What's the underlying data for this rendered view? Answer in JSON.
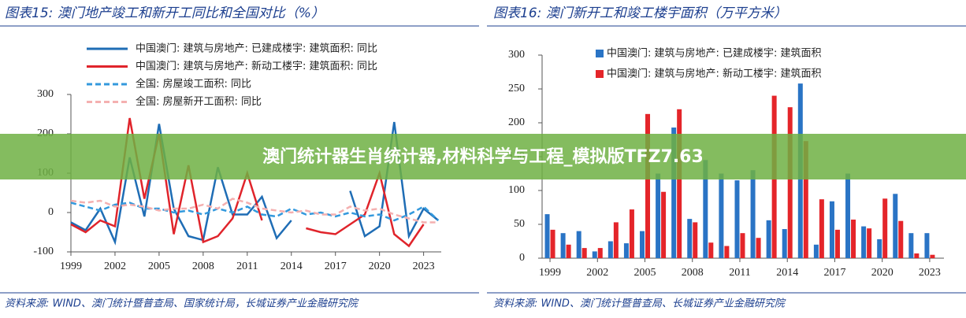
{
  "chart_data": [
    {
      "type": "line",
      "title": "图表15:  澳门地产竣工和新开工同比和全国对比（%）",
      "source": "资料来源: WIND、澳门统计暨普查局、国家统计局，长城证券产业金融研究院",
      "x": [
        1999,
        2000,
        2001,
        2002,
        2003,
        2004,
        2005,
        2006,
        2007,
        2008,
        2009,
        2010,
        2011,
        2012,
        2013,
        2014,
        2015,
        2016,
        2017,
        2018,
        2019,
        2020,
        2021,
        2022,
        2023,
        2024
      ],
      "xlim": [
        1999,
        2024.2
      ],
      "xticks": [
        1999,
        2002,
        2005,
        2008,
        2011,
        2014,
        2017,
        2020,
        2023
      ],
      "ylim": [
        -100,
        300
      ],
      "yticks": [
        -100,
        0,
        100,
        200,
        300
      ],
      "series": [
        {
          "name": "中国澳门: 建筑与房地产: 已建成楼宇: 建筑面积: 同比",
          "color": "#1f6db5",
          "style": "solid",
          "values": [
            -25,
            -45,
            10,
            -75,
            140,
            -10,
            225,
            10,
            -60,
            -70,
            115,
            -5,
            -5,
            40,
            -65,
            -20,
            null,
            null,
            null,
            55,
            -60,
            -35,
            230,
            -60,
            10,
            -20
          ]
        },
        {
          "name": "中国澳门: 建筑与房地产: 新动工楼宇: 建筑面积: 同比",
          "color": "#e0242b",
          "style": "solid",
          "values": [
            -30,
            -50,
            -20,
            -35,
            240,
            35,
            200,
            -55,
            120,
            -75,
            -60,
            -15,
            100,
            -20,
            null,
            null,
            -40,
            -50,
            -55,
            -30,
            -5,
            100,
            -55,
            -85,
            -30,
            null
          ]
        },
        {
          "name": "全国: 房屋竣工面积: 同比",
          "color": "#3399dd",
          "style": "dashed",
          "values": [
            25,
            15,
            5,
            20,
            25,
            10,
            10,
            0,
            5,
            -5,
            10,
            0,
            15,
            -5,
            -10,
            10,
            -5,
            0,
            -10,
            0,
            -10,
            -5,
            -20,
            -5,
            15,
            -20
          ]
        },
        {
          "name": "全国: 房屋新开工面积: 同比",
          "color": "#f4b0b0",
          "style": "dashed",
          "values": [
            30,
            25,
            30,
            15,
            20,
            15,
            5,
            10,
            10,
            20,
            10,
            35,
            25,
            10,
            5,
            0,
            5,
            -5,
            -5,
            15,
            5,
            10,
            -5,
            -15,
            -25,
            -25
          ]
        }
      ]
    },
    {
      "type": "bar",
      "title": "图表16:  澳门新开工和竣工楼宇面积（万平方米）",
      "source": "资料来源: WIND、澳门统计暨普查局、长城证券产业金融研究院",
      "x": [
        1999,
        2000,
        2001,
        2002,
        2003,
        2004,
        2005,
        2006,
        2007,
        2008,
        2009,
        2010,
        2011,
        2012,
        2013,
        2014,
        2015,
        2016,
        2017,
        2018,
        2019,
        2020,
        2021,
        2022,
        2023
      ],
      "xlim": [
        1998.5,
        2023.9
      ],
      "xticks": [
        1999,
        2002,
        2005,
        2008,
        2011,
        2014,
        2017,
        2020,
        2023
      ],
      "ylim": [
        0,
        300
      ],
      "yticks": [
        0,
        50,
        100,
        150,
        200,
        250,
        300
      ],
      "series": [
        {
          "name": "中国澳门: 建筑与房地产: 已建成楼宇: 建筑面积",
          "color": "#2a74c5",
          "values": [
            65,
            37,
            40,
            10,
            25,
            22,
            40,
            125,
            193,
            58,
            145,
            125,
            115,
            130,
            56,
            43,
            258,
            20,
            84,
            125,
            47,
            28,
            95,
            37,
            37
          ]
        },
        {
          "name": "中国澳门: 建筑与房地产: 新动工楼宇: 建筑面积",
          "color": "#e4252a",
          "values": [
            42,
            20,
            15,
            15,
            53,
            72,
            213,
            98,
            220,
            53,
            23,
            18,
            37,
            30,
            240,
            223,
            173,
            87,
            42,
            57,
            44,
            88,
            55,
            7,
            5
          ]
        }
      ]
    }
  ],
  "banner": "澳门统计器生肖统计器,材料科学与工程_模拟版TFZ7.63"
}
